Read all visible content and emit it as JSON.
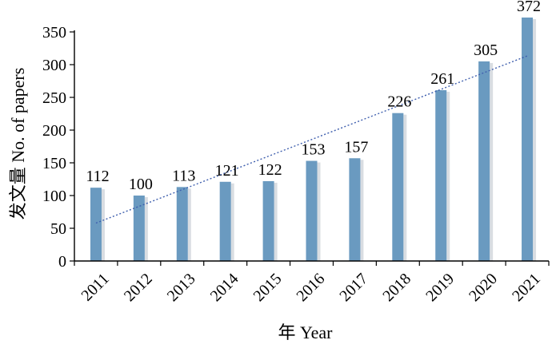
{
  "chart_data": {
    "type": "bar",
    "categories": [
      "2011",
      "2012",
      "2013",
      "2014",
      "2015",
      "2016",
      "2017",
      "2018",
      "2019",
      "2020",
      "2021"
    ],
    "values": [
      112,
      100,
      113,
      121,
      122,
      153,
      157,
      226,
      261,
      305,
      372
    ],
    "data_labels": [
      "112",
      "100",
      "113",
      "121",
      "122",
      "153",
      "157",
      "226",
      "261",
      "305",
      "372"
    ],
    "xlabel": "年 Year",
    "ylabel": "发文量 No. of papers",
    "ylim": [
      0,
      350
    ],
    "yticks": [
      0,
      50,
      100,
      150,
      200,
      250,
      300,
      350
    ],
    "grid": false,
    "legend": "none",
    "trendline": {
      "type": "linear",
      "style": "dotted",
      "color": "#3f5fae"
    },
    "bar_color": "#6a9ac0"
  }
}
